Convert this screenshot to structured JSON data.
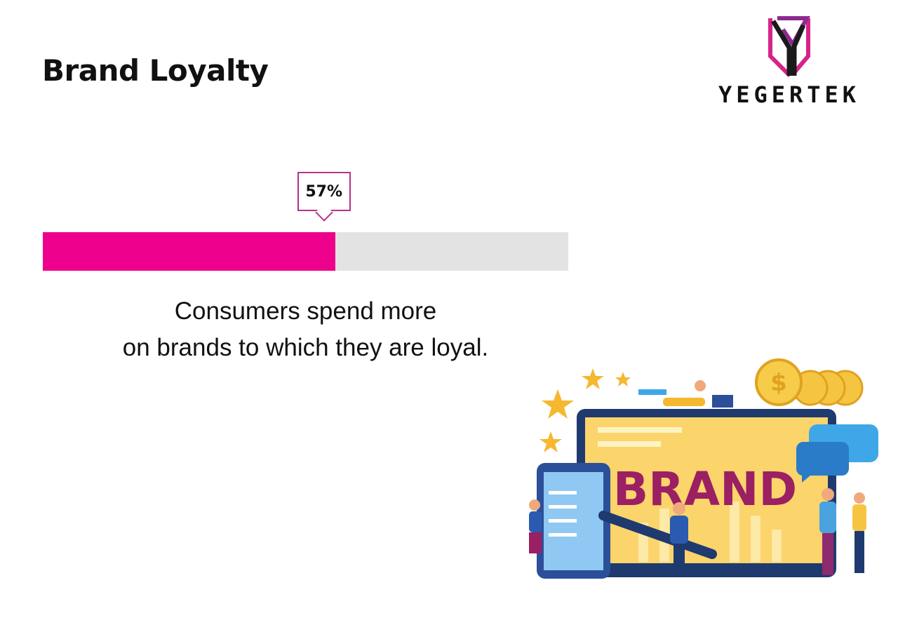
{
  "title": "Brand Loyalty",
  "logo": {
    "text": "YEGERTEK",
    "colors": {
      "magenta": "#d6238a",
      "purple": "#8e2a8f",
      "black": "#1a1a1a"
    }
  },
  "progress": {
    "value_percent": 57,
    "label": "57%",
    "fill_color": "#ec008c",
    "track_color": "#e3e3e3"
  },
  "description": {
    "line1": "Consumers spend more",
    "line2": "on brands to which they are loyal."
  },
  "illustration": {
    "sign_text": "BRAND"
  }
}
